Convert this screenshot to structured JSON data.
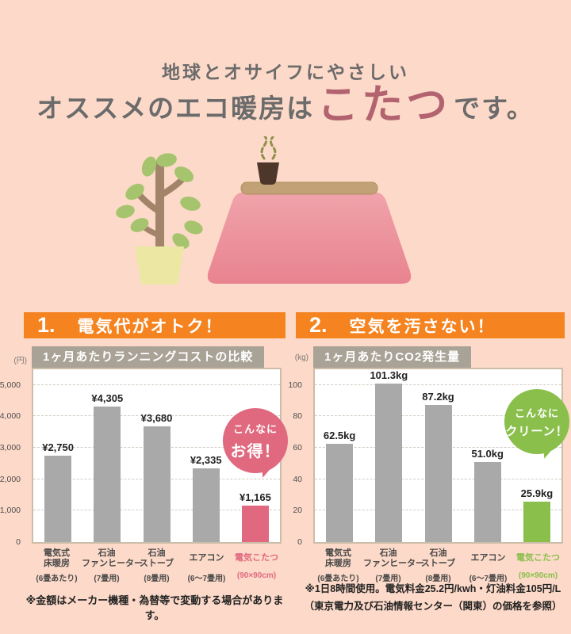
{
  "page": {
    "background_color": "#fcd9c8",
    "header": {
      "line1": "地球とオサイフにやさしい",
      "line2_prefix": "オススメのエコ暖房は",
      "line2_highlight": "こたつ",
      "line2_suffix": "です。",
      "text_color": "#6b6b6b",
      "highlight_color": "#b2636f"
    }
  },
  "sections": [
    {
      "number": "1.",
      "title": "電気代がオトク！",
      "bar_color": "#f5831f"
    },
    {
      "number": "2.",
      "title": "空気を汚さない！",
      "bar_color": "#f5831f"
    }
  ],
  "chart_data": [
    {
      "type": "bar",
      "title": "1ヶ月あたりランニングコストの比較",
      "unit": "(円)",
      "ylim": [
        0,
        5500
      ],
      "yticks": [
        0,
        1000,
        2000,
        3000,
        4000,
        5000
      ],
      "ytick_labels": [
        "0",
        "1,000",
        "2,000",
        "3,000",
        "4,000",
        "5,000"
      ],
      "grid": "dashed",
      "legend": "none",
      "categories": [
        {
          "lines": [
            "電気式",
            "床暖房"
          ],
          "sub": "(6畳あたり)"
        },
        {
          "lines": [
            "石油",
            "ファンヒーター"
          ],
          "sub": "(7畳用)"
        },
        {
          "lines": [
            "石油",
            "ストーブ"
          ],
          "sub": "(8畳用)"
        },
        {
          "lines": [
            "エアコン"
          ],
          "sub": "(6〜7畳用)"
        },
        {
          "lines": [
            "電気こたつ"
          ],
          "sub": "(90×90cm)"
        }
      ],
      "values": [
        2750,
        4305,
        3680,
        2335,
        1165
      ],
      "value_labels": [
        "¥2,750",
        "¥4,305",
        "¥3,680",
        "¥2,335",
        "¥1,165"
      ],
      "bar_color": "#a9a9a9",
      "highlight_index": 4,
      "highlight_color": "#e0697f",
      "bubble": {
        "line1": "こんなに",
        "line2": "お得！",
        "color": "#e0697f"
      }
    },
    {
      "type": "bar",
      "title": "1ヶ月あたりCO2発生量",
      "unit": "(kg)",
      "ylim": [
        0,
        110
      ],
      "yticks": [
        0,
        20,
        40,
        60,
        80,
        100
      ],
      "ytick_labels": [
        "0",
        "20",
        "40",
        "60",
        "80",
        "100"
      ],
      "grid": "dashed",
      "legend": "none",
      "categories": [
        {
          "lines": [
            "電気式",
            "床暖房"
          ],
          "sub": "(6畳あたり)"
        },
        {
          "lines": [
            "石油",
            "ファンヒーター"
          ],
          "sub": "(7畳用)"
        },
        {
          "lines": [
            "石油",
            "ストーブ"
          ],
          "sub": "(8畳用)"
        },
        {
          "lines": [
            "エアコン"
          ],
          "sub": "(6〜7畳用)"
        },
        {
          "lines": [
            "電気こたつ"
          ],
          "sub": "(90×90cm)"
        }
      ],
      "values": [
        62.5,
        101.3,
        87.2,
        51.0,
        25.9
      ],
      "value_labels": [
        "62.5kg",
        "101.3kg",
        "87.2kg",
        "51.0kg",
        "25.9kg"
      ],
      "bar_color": "#a9a9a9",
      "highlight_index": 4,
      "highlight_color": "#8abf4b",
      "bubble": {
        "line1": "こんなに",
        "line2": "クリーン！",
        "color": "#8abf4b"
      }
    }
  ],
  "footnotes": {
    "left": "※金額はメーカー機種・為替等で変動する場合があります。",
    "right_line1": "※1日8時間使用。電気料金25.2円/kwh・灯油料金105円/L",
    "right_line2": "（東京電力及び石油情報センター（関東）の価格を参照）"
  },
  "illustration": {
    "icons": [
      "potted-plant-icon",
      "kotatsu-icon",
      "teacup-icon",
      "steam-icon"
    ]
  }
}
